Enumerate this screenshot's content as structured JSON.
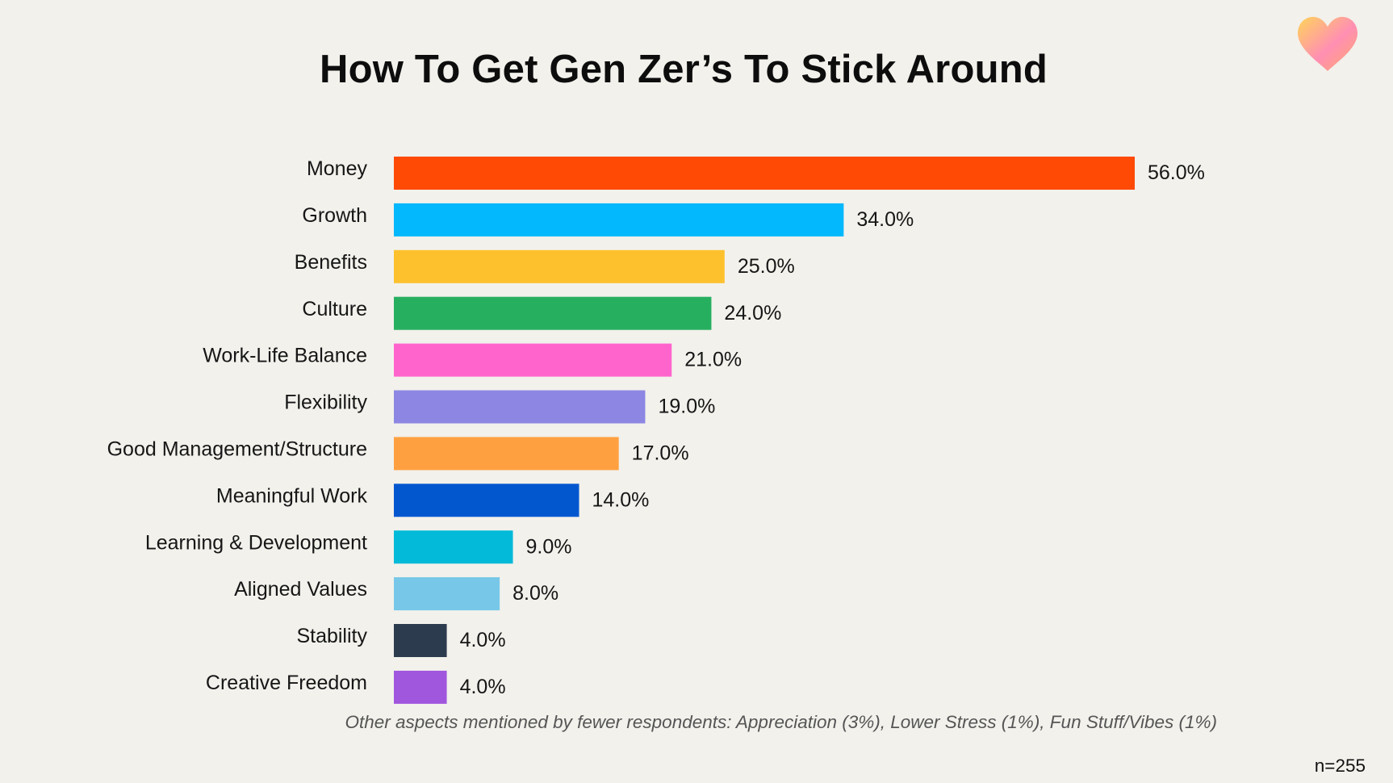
{
  "colors": {
    "background": "#f2f1ec",
    "logo_gradient": [
      "#ffd45a",
      "#ff8fb3",
      "#ffa86a"
    ]
  },
  "logo": {
    "icon": "heart-logo-icon"
  },
  "note": "Other aspects mentioned by fewer respondents: Appreciation (3%), Lower Stress (1%), Fun Stuff/Vibes (1%)",
  "sample_size": "n=255",
  "chart_data": {
    "type": "bar",
    "orientation": "horizontal",
    "title": "How To Get Gen Zer’s To Stick Around",
    "xlabel": "",
    "ylabel": "",
    "xlim": [
      0,
      56
    ],
    "grid": false,
    "legend": "none",
    "value_format": "{v}%",
    "categories": [
      "Money",
      "Growth",
      "Benefits",
      "Culture",
      "Work-Life Balance",
      "Flexibility",
      "Good Management/Structure",
      "Meaningful Work",
      "Learning & Development",
      "Aligned Values",
      "Stability",
      "Creative Freedom"
    ],
    "values": [
      56.0,
      34.0,
      25.0,
      24.0,
      21.0,
      19.0,
      17.0,
      14.0,
      9.0,
      8.0,
      4.0,
      4.0
    ],
    "value_labels": [
      "56.0%",
      "34.0%",
      "25.0%",
      "24.0%",
      "21.0%",
      "19.0%",
      "17.0%",
      "14.0%",
      "9.0%",
      "8.0%",
      "4.0%",
      "4.0%"
    ],
    "bar_colors": [
      "#ff4a06",
      "#03b8fc",
      "#fec12e",
      "#27af60",
      "#ff64cd",
      "#8d87e3",
      "#ffa040",
      "#0257cf",
      "#03bad8",
      "#77c8e8",
      "#2d3b4e",
      "#a156de"
    ]
  }
}
